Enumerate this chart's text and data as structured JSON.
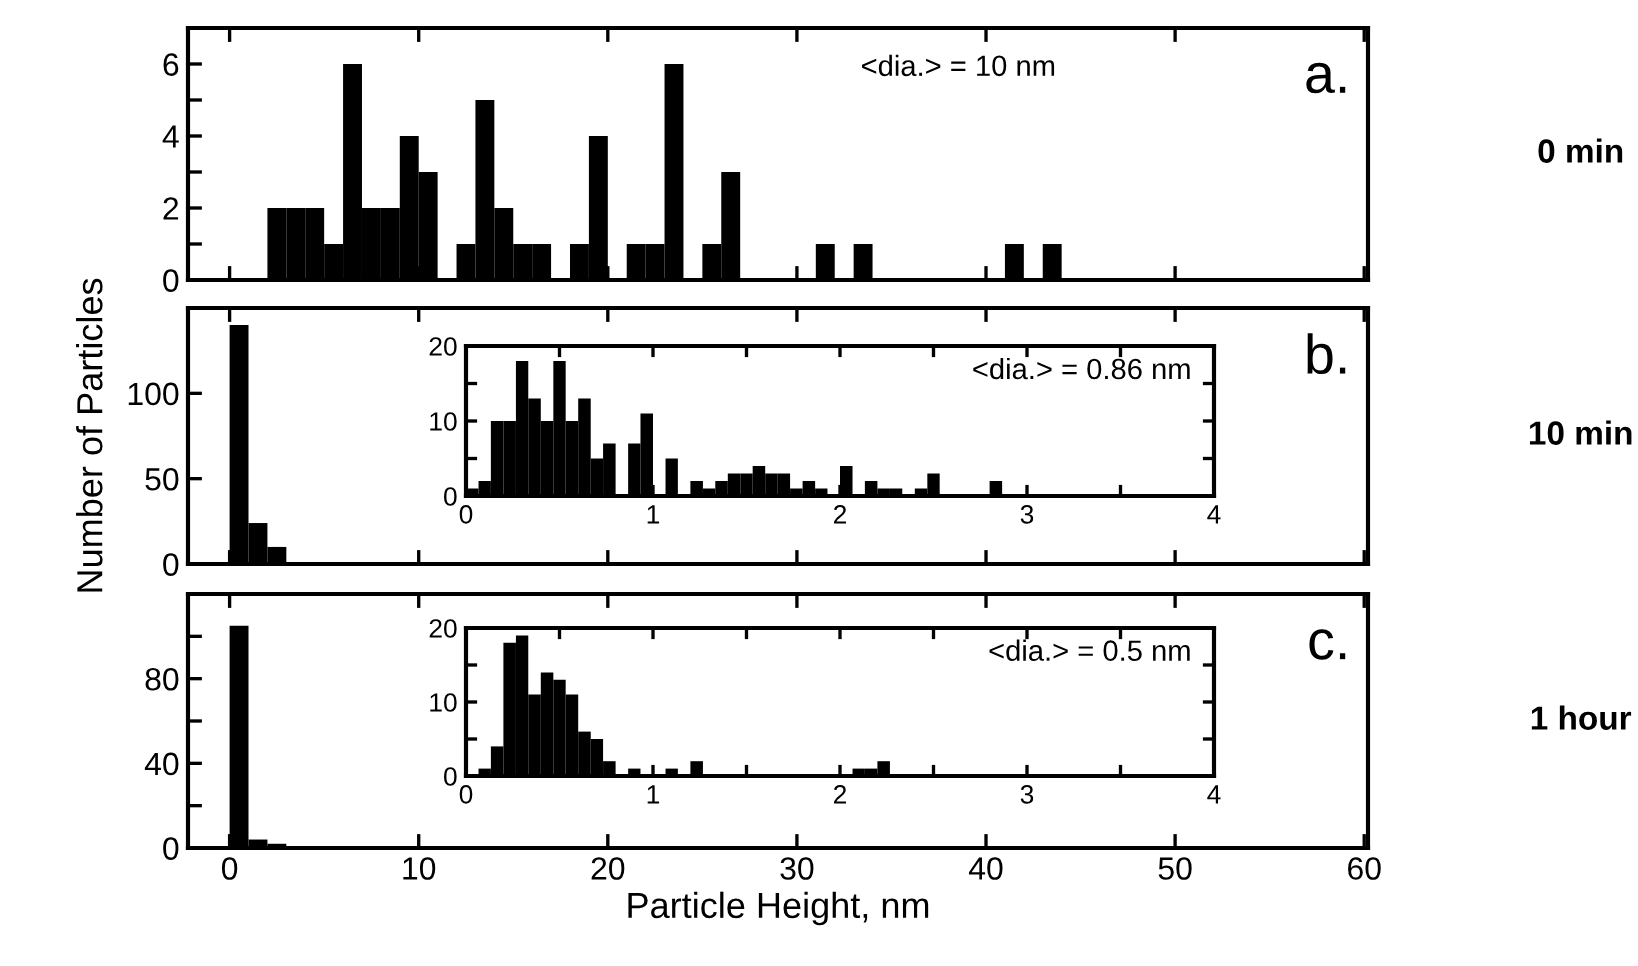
{
  "chart_data": [
    {
      "type": "histogram",
      "bins": [
        2,
        3,
        4,
        5,
        6,
        7,
        8,
        9,
        10,
        11,
        12,
        13,
        14,
        15,
        16,
        17,
        18,
        19,
        20,
        21,
        22,
        23,
        24,
        25,
        26,
        27,
        28,
        29,
        30,
        31,
        32,
        33,
        34,
        35,
        36,
        37,
        38,
        39,
        40,
        41,
        42,
        43,
        44
      ],
      "values": [
        2,
        2,
        2,
        1,
        6,
        2,
        2,
        4,
        3,
        0,
        1,
        5,
        2,
        1,
        1,
        0,
        1,
        4,
        0,
        1,
        1,
        6,
        0,
        1,
        3,
        0,
        0,
        0,
        0,
        1,
        0,
        1,
        0,
        0,
        0,
        0,
        0,
        0,
        0,
        1,
        0,
        1
      ],
      "color": "#000000",
      "xlim": [
        -2.2,
        60.2
      ],
      "ylim": [
        0,
        7
      ],
      "xticks": [
        0,
        10,
        20,
        30,
        40,
        50,
        60
      ],
      "yticks": [
        0,
        {
          "value": 1,
          "label": null
        },
        2,
        {
          "value": 3,
          "label": null
        },
        4,
        {
          "value": 5,
          "label": null
        },
        6
      ],
      "tick_labels": "y",
      "annotations": [
        "<dia.> = 10 nm",
        "a.",
        "0 min"
      ]
    },
    {
      "type": "histogram",
      "bins": [
        0,
        1,
        2,
        3
      ],
      "values": [
        140,
        24,
        10
      ],
      "color": "#000000",
      "xlim": [
        -2.2,
        60.2
      ],
      "ylim": [
        0,
        150
      ],
      "xticks": [
        0,
        10,
        20,
        30,
        40,
        50,
        60
      ],
      "yticks": [
        0,
        50,
        100
      ],
      "tick_labels": "y",
      "ylabel": "Number of Particles",
      "annotations": [
        "b.",
        "10 min"
      ]
    },
    {
      "type": "histogram",
      "bins": [
        0,
        0.067,
        0.133,
        0.2,
        0.267,
        0.333,
        0.4,
        0.467,
        0.533,
        0.6,
        0.667,
        0.733,
        0.8,
        0.867,
        0.933,
        1,
        1.067,
        1.133,
        1.2,
        1.267,
        1.333,
        1.4,
        1.467,
        1.533,
        1.6,
        1.667,
        1.733,
        1.8,
        1.867,
        1.933,
        2,
        2.067,
        2.133,
        2.2,
        2.267,
        2.333,
        2.4,
        2.467,
        2.533,
        2.6,
        2.667,
        2.733,
        2.8,
        2.867
      ],
      "values": [
        1,
        2,
        10,
        10,
        18,
        13,
        10,
        18,
        10,
        13,
        5,
        7,
        0,
        7,
        11,
        0,
        5,
        0,
        2,
        1,
        2,
        3,
        3,
        4,
        3,
        3,
        1,
        2,
        1,
        0,
        4,
        0,
        2,
        1,
        1,
        0,
        1,
        3,
        0,
        0,
        0,
        0,
        2
      ],
      "color": "#000000",
      "xlim": [
        0,
        4
      ],
      "ylim": [
        0,
        20
      ],
      "xticks": [
        0,
        {
          "value": 0.5,
          "label": null
        },
        1,
        {
          "value": 1.5,
          "label": null
        },
        2,
        {
          "value": 2.5,
          "label": null
        },
        3,
        {
          "value": 3.5,
          "label": null
        },
        4
      ],
      "yticks": [
        0,
        {
          "value": 5,
          "label": null
        },
        10,
        {
          "value": 15,
          "label": null
        },
        20
      ],
      "annotations": [
        "<dia.> = 0.86 nm"
      ]
    },
    {
      "type": "histogram",
      "bins": [
        0,
        1,
        2,
        3
      ],
      "values": [
        105,
        4,
        2
      ],
      "color": "#000000",
      "xlim": [
        -2.2,
        60.2
      ],
      "ylim": [
        0,
        120
      ],
      "xticks": [
        0,
        10,
        20,
        30,
        40,
        50,
        60
      ],
      "yticks": [
        0,
        {
          "value": 20,
          "label": null
        },
        40,
        {
          "value": 60,
          "label": null
        },
        80,
        {
          "value": 100,
          "label": null
        }
      ],
      "xlabel": "Particle Height, nm",
      "annotations": [
        "c.",
        "1 hour"
      ]
    },
    {
      "type": "histogram",
      "bins": [
        0,
        0.067,
        0.133,
        0.2,
        0.267,
        0.333,
        0.4,
        0.467,
        0.533,
        0.6,
        0.667,
        0.733,
        0.8,
        0.867,
        0.933,
        1,
        1.067,
        1.133,
        1.2,
        1.267,
        1.333,
        1.4,
        1.467,
        1.533,
        1.6,
        1.667,
        1.733,
        1.8,
        1.867,
        1.933,
        2,
        2.067,
        2.133,
        2.2,
        2.267
      ],
      "values": [
        0,
        1,
        4,
        18,
        19,
        11,
        14,
        13,
        11,
        6,
        5,
        2,
        0,
        1,
        0,
        0,
        1,
        0,
        2,
        0,
        0,
        0,
        0,
        0,
        0,
        0,
        0,
        0,
        0,
        0,
        0,
        1,
        1,
        2
      ],
      "color": "#000000",
      "xlim": [
        0,
        4
      ],
      "ylim": [
        0,
        20
      ],
      "xticks": [
        0,
        {
          "value": 0.5,
          "label": null
        },
        1,
        {
          "value": 1.5,
          "label": null
        },
        2,
        {
          "value": 2.5,
          "label": null
        },
        3,
        {
          "value": 3.5,
          "label": null
        },
        4
      ],
      "yticks": [
        0,
        {
          "value": 5,
          "label": null
        },
        10,
        {
          "value": 15,
          "label": null
        },
        20
      ],
      "annotations": [
        "<dia.> = 0.5 nm"
      ]
    }
  ]
}
